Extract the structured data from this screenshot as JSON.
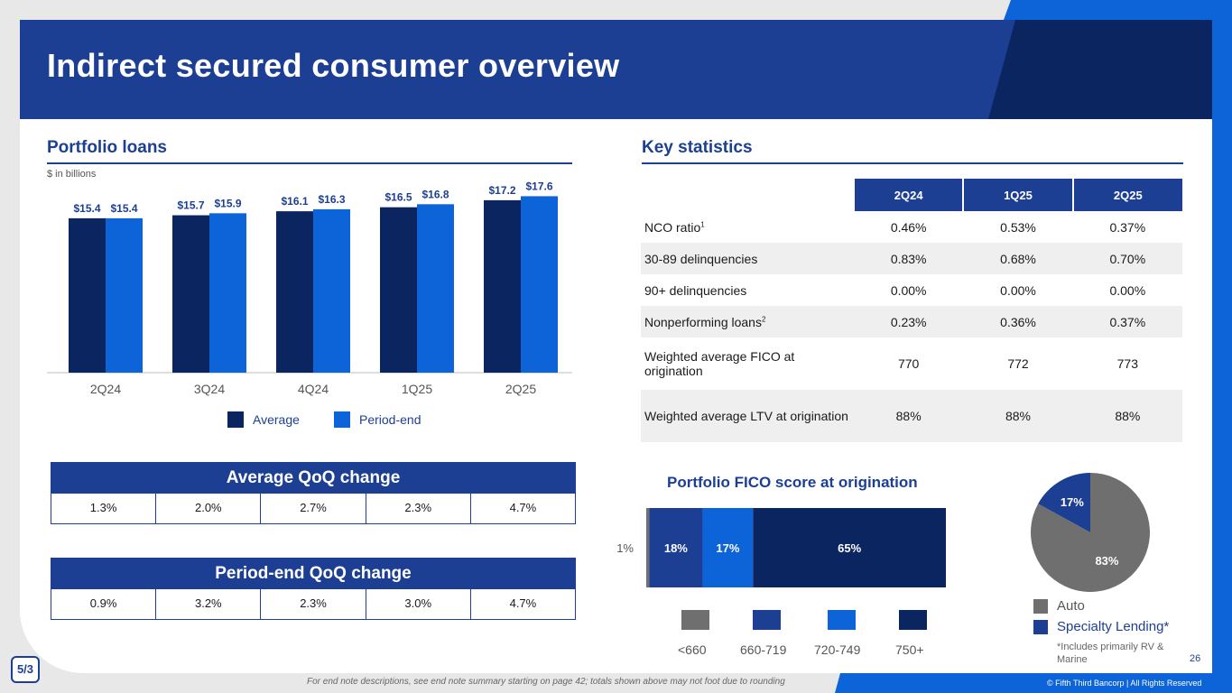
{
  "header": {
    "title": "Indirect secured consumer overview"
  },
  "portfolio": {
    "title": "Portfolio loans",
    "unit_note": "$ in billions",
    "legend": {
      "average": "Average",
      "period_end": "Period-end"
    }
  },
  "chart_data": [
    {
      "type": "bar",
      "title": "Portfolio loans",
      "subtitle": "$ in billions",
      "categories": [
        "2Q24",
        "3Q24",
        "4Q24",
        "1Q25",
        "2Q25"
      ],
      "series": [
        {
          "name": "Average",
          "values": [
            15.4,
            15.7,
            16.1,
            16.5,
            17.2
          ],
          "labels": [
            "$15.4",
            "$15.7",
            "$16.1",
            "$16.5",
            "$17.2"
          ],
          "color": "#0b2560"
        },
        {
          "name": "Period-end",
          "values": [
            15.4,
            15.9,
            16.3,
            16.8,
            17.6
          ],
          "labels": [
            "$15.4",
            "$15.9",
            "$16.3",
            "$16.8",
            "$17.6"
          ],
          "color": "#0d63d8"
        }
      ],
      "ylim": [
        0,
        18.0
      ]
    },
    {
      "type": "bar",
      "title": "Portfolio FICO score at origination",
      "stacked": true,
      "orientation": "horizontal",
      "series": [
        {
          "name": "<660",
          "values": [
            1
          ],
          "label": "1%",
          "color": "#6f6f6f"
        },
        {
          "name": "660-719",
          "values": [
            18
          ],
          "label": "18%",
          "color": "#1c3f94"
        },
        {
          "name": "720-749",
          "values": [
            17
          ],
          "label": "17%",
          "color": "#0d63d8"
        },
        {
          "name": "750+",
          "values": [
            65
          ],
          "label": "65%",
          "color": "#0b2560"
        }
      ]
    },
    {
      "type": "pie",
      "slices": [
        {
          "name": "Auto",
          "value": 83,
          "label": "83%",
          "color": "#6f6f6f"
        },
        {
          "name": "Specialty Lending*",
          "value": 17,
          "label": "17%",
          "color": "#1c3f94"
        }
      ]
    }
  ],
  "avg_change": {
    "title": "Average QoQ change",
    "values": [
      "1.3%",
      "2.0%",
      "2.7%",
      "2.3%",
      "4.7%"
    ]
  },
  "pe_change": {
    "title": "Period-end QoQ change",
    "values": [
      "0.9%",
      "3.2%",
      "2.3%",
      "3.0%",
      "4.7%"
    ]
  },
  "stats": {
    "title": "Key statistics",
    "columns": [
      "2Q24",
      "1Q25",
      "2Q25"
    ],
    "rows": [
      {
        "label": "NCO ratio",
        "sup": "1",
        "values": [
          "0.46%",
          "0.53%",
          "0.37%"
        ]
      },
      {
        "label": "30-89 delinquencies",
        "sup": "",
        "values": [
          "0.83%",
          "0.68%",
          "0.70%"
        ]
      },
      {
        "label": "90+ delinquencies",
        "sup": "",
        "values": [
          "0.00%",
          "0.00%",
          "0.00%"
        ]
      },
      {
        "label": "Nonperforming loans",
        "sup": "2",
        "values": [
          "0.23%",
          "0.36%",
          "0.37%"
        ]
      },
      {
        "label": "Weighted average FICO at origination",
        "sup": "",
        "values": [
          "770",
          "772",
          "773"
        ]
      },
      {
        "label": "Weighted average LTV at origination",
        "sup": "",
        "values": [
          "88%",
          "88%",
          "88%"
        ]
      }
    ]
  },
  "fico": {
    "title": "Portfolio FICO score at origination"
  },
  "pie": {
    "note": "*Includes primarily RV & Marine"
  },
  "footer": {
    "note": "For end note descriptions, see end note summary starting on page 42; totals shown above may not foot due to rounding",
    "copyright": "© Fifth Third Bancorp | All Rights Reserved",
    "page_number": "26",
    "logo": "5/3"
  }
}
